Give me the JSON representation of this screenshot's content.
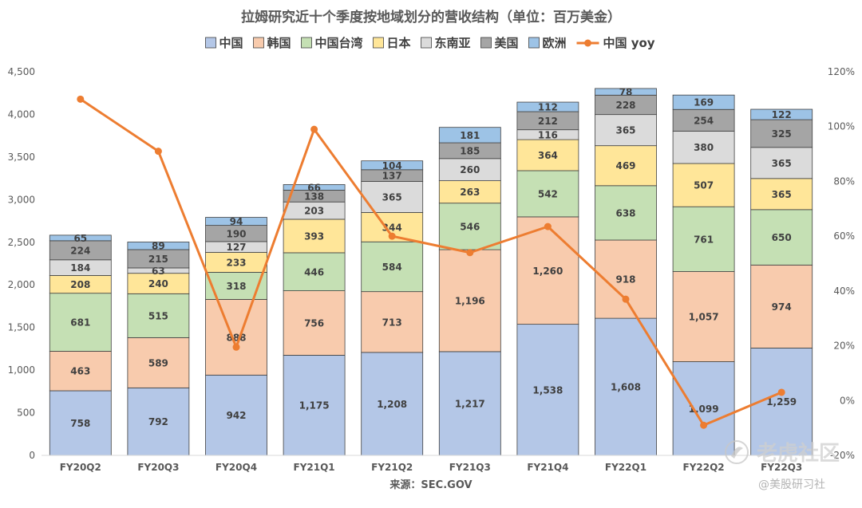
{
  "chart_data": {
    "type": "bar",
    "stacked": true,
    "title": "拉姆研究近十个季度按地域划分的营收结构（单位：百万美金）",
    "source": "来源：SEC.GOV",
    "categories": [
      "FY20Q2",
      "FY20Q3",
      "FY20Q4",
      "FY21Q1",
      "FY21Q2",
      "FY21Q3",
      "FY21Q4",
      "FY22Q1",
      "FY22Q2",
      "FY22Q3"
    ],
    "y_left": {
      "ylim": [
        0,
        4500
      ],
      "ticks": [
        0,
        500,
        1000,
        1500,
        2000,
        2500,
        3000,
        3500,
        4000,
        4500
      ],
      "tick_labels": [
        "0",
        "500",
        "1,000",
        "1,500",
        "2,000",
        "2,500",
        "3,000",
        "3,500",
        "4,000",
        "4,500"
      ]
    },
    "y_right": {
      "ylim": [
        -20,
        120
      ],
      "ticks": [
        -20,
        0,
        20,
        40,
        60,
        80,
        100,
        120
      ],
      "tick_labels": [
        "-20%",
        "0%",
        "20%",
        "40%",
        "60%",
        "80%",
        "100%",
        "120%"
      ]
    },
    "grid": false,
    "legend_position": "top",
    "series": [
      {
        "name": "中国",
        "color": "#b4c7e7",
        "values": [
          758,
          792,
          942,
          1175,
          1208,
          1217,
          1538,
          1608,
          1099,
          1259
        ],
        "labels": [
          "758",
          "792",
          "942",
          "1,175",
          "1,208",
          "1,217",
          "1,538",
          "1,608",
          "1,099",
          "1,259"
        ]
      },
      {
        "name": "韩国",
        "color": "#f8cbad",
        "values": [
          463,
          589,
          888,
          756,
          713,
          1196,
          1260,
          918,
          1057,
          974
        ],
        "labels": [
          "463",
          "589",
          "888",
          "756",
          "713",
          "1,196",
          "1,260",
          "918",
          "1,057",
          "974"
        ]
      },
      {
        "name": "中国台湾",
        "color": "#c5e0b4",
        "values": [
          681,
          515,
          318,
          446,
          584,
          546,
          542,
          638,
          761,
          650
        ],
        "labels": [
          "681",
          "515",
          "318",
          "446",
          "584",
          "546",
          "542",
          "638",
          "761",
          "650"
        ]
      },
      {
        "name": "日本",
        "color": "#ffe699",
        "values": [
          208,
          240,
          233,
          393,
          344,
          263,
          364,
          469,
          507,
          365
        ],
        "labels": [
          "208",
          "240",
          "233",
          "393",
          "344",
          "263",
          "364",
          "469",
          "507",
          "365"
        ]
      },
      {
        "name": "东南亚",
        "color": "#dbdbdb",
        "values": [
          184,
          63,
          127,
          203,
          365,
          260,
          116,
          365,
          380,
          365
        ],
        "labels": [
          "184",
          "63",
          "127",
          "203",
          "365",
          "260",
          "116",
          "365",
          "380",
          "365"
        ]
      },
      {
        "name": "美国",
        "color": "#a5a5a5",
        "values": [
          224,
          215,
          190,
          138,
          137,
          185,
          212,
          228,
          254,
          325
        ],
        "labels": [
          "224",
          "215",
          "190",
          "138",
          "137",
          "185",
          "212",
          "228",
          "254",
          "325"
        ]
      },
      {
        "name": "欧洲",
        "color": "#9dc3e6",
        "values": [
          65,
          89,
          94,
          66,
          104,
          181,
          112,
          78,
          169,
          122
        ],
        "labels": [
          "65",
          "89",
          "94",
          "66",
          "104",
          "181",
          "112",
          "78",
          "169",
          "122"
        ]
      }
    ],
    "line_series": {
      "name": "中国 yoy",
      "color": "#ed7d31",
      "axis": "right",
      "values": [
        110,
        91,
        19.5,
        99,
        60,
        54,
        63.5,
        37,
        -9,
        3
      ]
    }
  },
  "watermark": {
    "logo_text": "老虎社区",
    "account_text": "@美股研习社"
  }
}
